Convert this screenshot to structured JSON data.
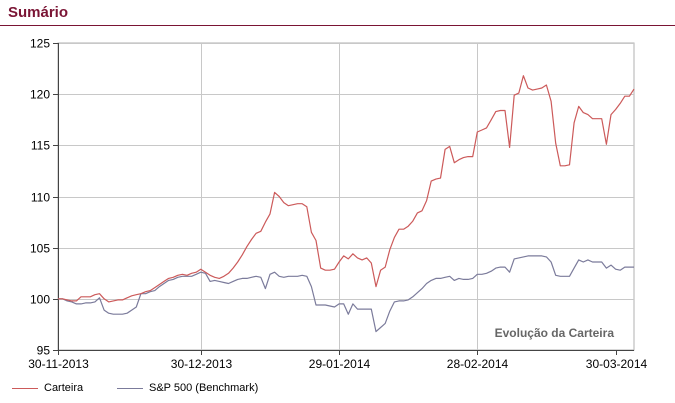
{
  "header": {
    "title": "Sumário"
  },
  "colors": {
    "title": "#7a1434",
    "carteira": "#cc5a5a",
    "benchmark": "#7b7b9b",
    "grid": "#c8c8c8",
    "axis": "#444444"
  },
  "chart_data": {
    "type": "line",
    "annotation": "Evolução da Carteira",
    "ylim": [
      95,
      125
    ],
    "yticks": [
      95,
      100,
      105,
      110,
      115,
      120,
      125
    ],
    "xticks": [
      "30-11-2013",
      "30-12-2013",
      "29-01-2014",
      "28-02-2014",
      "30-03-2014"
    ],
    "grid": true,
    "legend_position": "bottom-left",
    "series": [
      {
        "name": "Carteira",
        "color": "#cc5a5a",
        "values": [
          100.0,
          100.0,
          99.9,
          99.8,
          99.8,
          100.2,
          100.2,
          100.2,
          100.4,
          100.5,
          100.0,
          99.7,
          99.8,
          99.9,
          99.9,
          100.1,
          100.3,
          100.4,
          100.5,
          100.7,
          100.8,
          101.1,
          101.4,
          101.7,
          102.0,
          102.1,
          102.3,
          102.4,
          102.3,
          102.5,
          102.6,
          102.9,
          102.6,
          102.3,
          102.1,
          102.0,
          102.2,
          102.5,
          103.0,
          103.6,
          104.3,
          105.1,
          105.8,
          106.4,
          106.6,
          107.5,
          108.3,
          110.4,
          110.0,
          109.4,
          109.1,
          109.2,
          109.3,
          109.3,
          109.0,
          106.5,
          105.7,
          103.0,
          102.8,
          102.8,
          102.9,
          103.6,
          104.2,
          103.9,
          104.4,
          104.0,
          103.8,
          104.0,
          103.5,
          101.2,
          102.8,
          103.1,
          104.8,
          106.0,
          106.8,
          106.8,
          107.1,
          107.6,
          108.4,
          108.6,
          109.6,
          111.5,
          111.7,
          111.8,
          114.6,
          114.9,
          113.3,
          113.6,
          113.8,
          113.9,
          113.9,
          116.3,
          116.5,
          116.7,
          117.5,
          118.3,
          118.4,
          118.4,
          114.8,
          119.9,
          120.1,
          121.8,
          120.6,
          120.4,
          120.5,
          120.6,
          120.9,
          119.3,
          115.2,
          113.0,
          113.0,
          113.1,
          117.2,
          118.8,
          118.2,
          118.0,
          117.6,
          117.6,
          117.6,
          115.1,
          118.0,
          118.5,
          119.1,
          119.8,
          119.8,
          120.5
        ]
      },
      {
        "name": "S&P 500 (Benchmark)",
        "color": "#7b7b9b",
        "values": [
          100.0,
          100.0,
          99.8,
          99.7,
          99.5,
          99.5,
          99.6,
          99.6,
          99.7,
          100.1,
          98.9,
          98.6,
          98.5,
          98.5,
          98.5,
          98.6,
          98.9,
          99.2,
          100.5,
          100.5,
          100.7,
          100.8,
          101.2,
          101.5,
          101.8,
          101.9,
          102.1,
          102.2,
          102.2,
          102.2,
          102.4,
          102.6,
          102.5,
          101.7,
          101.8,
          101.7,
          101.6,
          101.5,
          101.7,
          101.9,
          102.0,
          102.0,
          102.1,
          102.2,
          102.1,
          101.0,
          102.4,
          102.6,
          102.2,
          102.1,
          102.2,
          102.2,
          102.2,
          102.3,
          102.2,
          101.2,
          99.4,
          99.4,
          99.4,
          99.3,
          99.2,
          99.5,
          99.5,
          98.5,
          99.5,
          99.0,
          99.0,
          99.0,
          99.0,
          96.8,
          97.2,
          97.6,
          98.8,
          99.7,
          99.8,
          99.8,
          99.9,
          100.2,
          100.6,
          101.0,
          101.5,
          101.8,
          102.0,
          102.0,
          102.1,
          102.2,
          101.8,
          102.0,
          101.9,
          101.9,
          102.0,
          102.4,
          102.4,
          102.5,
          102.7,
          103.0,
          103.1,
          103.1,
          102.6,
          103.9,
          104.0,
          104.1,
          104.2,
          104.2,
          104.2,
          104.2,
          104.1,
          103.6,
          102.3,
          102.2,
          102.2,
          102.2,
          103.0,
          103.8,
          103.6,
          103.8,
          103.6,
          103.6,
          103.6,
          103.0,
          103.3,
          102.9,
          102.8,
          103.1,
          103.1,
          103.1
        ]
      }
    ]
  }
}
